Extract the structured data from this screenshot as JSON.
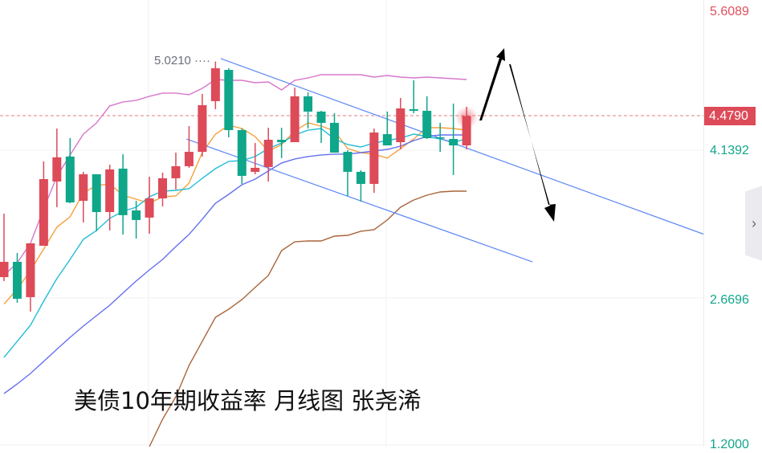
{
  "chart_data": {
    "type": "candlestick",
    "title": "美债10年期收益率 月线图 张尧浠",
    "y_ticks": [
      "5.6089",
      "4.1392",
      "2.6696",
      "1.2000"
    ],
    "last_price": "4.4790",
    "high_annotation": "5.0210",
    "ylim": [
      1.2,
      5.6089
    ],
    "grid": true,
    "colors": {
      "up": "#dd4a58",
      "down": "#0fa68a",
      "ma_orange": "#f7a03c",
      "ma_cyan": "#22bcd6",
      "ma_blue": "#6470f0",
      "ma_pink": "#d877cc",
      "ma_brown": "#a8653a",
      "trendline": "#5b86f5"
    },
    "candles": [
      [
        2.877,
        3.508,
        2.838,
        3.029
      ],
      [
        3.029,
        3.117,
        2.622,
        2.662
      ],
      [
        2.678,
        3.213,
        2.534,
        3.213
      ],
      [
        3.189,
        4.028,
        3.189,
        3.852
      ],
      [
        3.828,
        4.355,
        3.572,
        4.068
      ],
      [
        4.076,
        4.259,
        3.612,
        3.62
      ],
      [
        3.636,
        3.924,
        3.421,
        3.9
      ],
      [
        3.9,
        3.9,
        3.333,
        3.524
      ],
      [
        3.524,
        3.996,
        3.341,
        3.948
      ],
      [
        3.956,
        4.1,
        3.301,
        3.493
      ],
      [
        3.54,
        3.636,
        3.261,
        3.445
      ],
      [
        3.469,
        3.876,
        3.309,
        3.66
      ],
      [
        3.66,
        3.916,
        3.58,
        3.86
      ],
      [
        3.86,
        4.115,
        3.748,
        3.98
      ],
      [
        3.98,
        4.379,
        3.964,
        4.123
      ],
      [
        4.123,
        4.699,
        4.076,
        4.587
      ],
      [
        4.627,
        5.021,
        4.547,
        4.954
      ],
      [
        4.938,
        4.954,
        4.267,
        4.339
      ],
      [
        4.339,
        4.355,
        3.804,
        3.884
      ],
      [
        3.924,
        4.211,
        3.9,
        3.964
      ],
      [
        3.972,
        4.363,
        3.828,
        4.243
      ],
      [
        4.243,
        4.363,
        4.06,
        4.219
      ],
      [
        4.219,
        4.762,
        4.219,
        4.675
      ],
      [
        4.675,
        4.714,
        4.355,
        4.523
      ],
      [
        4.523,
        4.531,
        4.211,
        4.411
      ],
      [
        4.411,
        4.507,
        4.115,
        4.115
      ],
      [
        4.123,
        4.139,
        3.684,
        3.924
      ],
      [
        3.924,
        3.94,
        3.628,
        3.804
      ],
      [
        3.804,
        4.355,
        3.716,
        4.315
      ],
      [
        4.299,
        4.523,
        4.187,
        4.187
      ],
      [
        4.219,
        4.659,
        4.147,
        4.555
      ],
      [
        4.547,
        4.834,
        4.507,
        4.531
      ],
      [
        4.531,
        4.675,
        4.251,
        4.259
      ],
      [
        4.267,
        4.411,
        4.123,
        4.259
      ],
      [
        4.251,
        4.603,
        3.892,
        4.187
      ],
      [
        4.187,
        4.571,
        4.147,
        4.479
      ]
    ],
    "candle_fields": [
      "open",
      "high",
      "low",
      "close"
    ],
    "series": [
      {
        "color_key": "ma_orange",
        "values": [
          2.61,
          2.758,
          2.941,
          3.157,
          3.373,
          3.477,
          3.716,
          3.788,
          3.804,
          3.692,
          3.652,
          3.612,
          3.676,
          3.684,
          3.812,
          4.115,
          4.299,
          4.387,
          4.355,
          4.275,
          4.131,
          4.195,
          4.331,
          4.411,
          4.379,
          4.331,
          4.155,
          4.115,
          4.1,
          4.06,
          4.155,
          4.251,
          4.363,
          4.363,
          4.355,
          4.339
        ]
      },
      {
        "color_key": "ma_cyan",
        "values": [
          2.079,
          2.239,
          2.398,
          2.638,
          2.862,
          3.053,
          3.253,
          3.341,
          3.461,
          3.532,
          3.572,
          3.676,
          3.732,
          3.74,
          3.756,
          3.86,
          3.956,
          4.028,
          4.036,
          4.076,
          4.155,
          4.211,
          4.291,
          4.339,
          4.355,
          4.251,
          4.195,
          4.171,
          4.211,
          4.235,
          4.259,
          4.299,
          4.275,
          4.251,
          4.219,
          4.251
        ]
      },
      {
        "color_key": "ma_blue",
        "values": [
          1.719,
          1.815,
          1.919,
          2.039,
          2.159,
          2.278,
          2.39,
          2.494,
          2.598,
          2.718,
          2.838,
          2.949,
          3.053,
          3.181,
          3.301,
          3.453,
          3.612,
          3.7,
          3.796,
          3.852,
          3.932,
          4.012,
          4.052,
          4.076,
          4.092,
          4.1,
          4.1,
          4.115,
          4.131,
          4.147,
          4.179,
          4.235,
          4.275,
          4.291,
          4.291,
          4.291
        ]
      },
      {
        "color_key": "ma_pink",
        "values": [
          2.893,
          3.021,
          3.213,
          3.556,
          3.876,
          4.092,
          4.299,
          4.411,
          4.579,
          4.619,
          4.635,
          4.675,
          4.707,
          4.707,
          4.691,
          4.754,
          4.842,
          4.834,
          4.834,
          4.81,
          4.818,
          4.738,
          4.834,
          4.858,
          4.89,
          4.89,
          4.89,
          4.89,
          4.866,
          4.882,
          4.866,
          4.858,
          4.866,
          4.858,
          4.85,
          4.842
        ]
      },
      {
        "color_key": "ma_brown",
        "values": [
          null,
          null,
          null,
          null,
          null,
          null,
          null,
          null,
          null,
          null,
          null,
          1.192,
          1.464,
          1.687,
          1.999,
          2.239,
          2.478,
          2.558,
          2.654,
          2.774,
          2.893,
          3.141,
          3.229,
          3.237,
          3.237,
          3.285,
          3.293,
          3.333,
          3.349,
          3.445,
          3.572,
          3.644,
          3.692,
          3.724,
          3.732,
          3.732
        ]
      }
    ],
    "trendlines": [
      {
        "from": [
          16.4,
          5.05
        ],
        "to": [
          53.0,
          3.301
        ]
      },
      {
        "from": [
          13.8,
          4.251
        ],
        "to": [
          39.98,
          3.029
        ]
      }
    ]
  },
  "ui": {
    "collapse_icon": "chevron-right-icon",
    "collapse_glyph": "›"
  }
}
